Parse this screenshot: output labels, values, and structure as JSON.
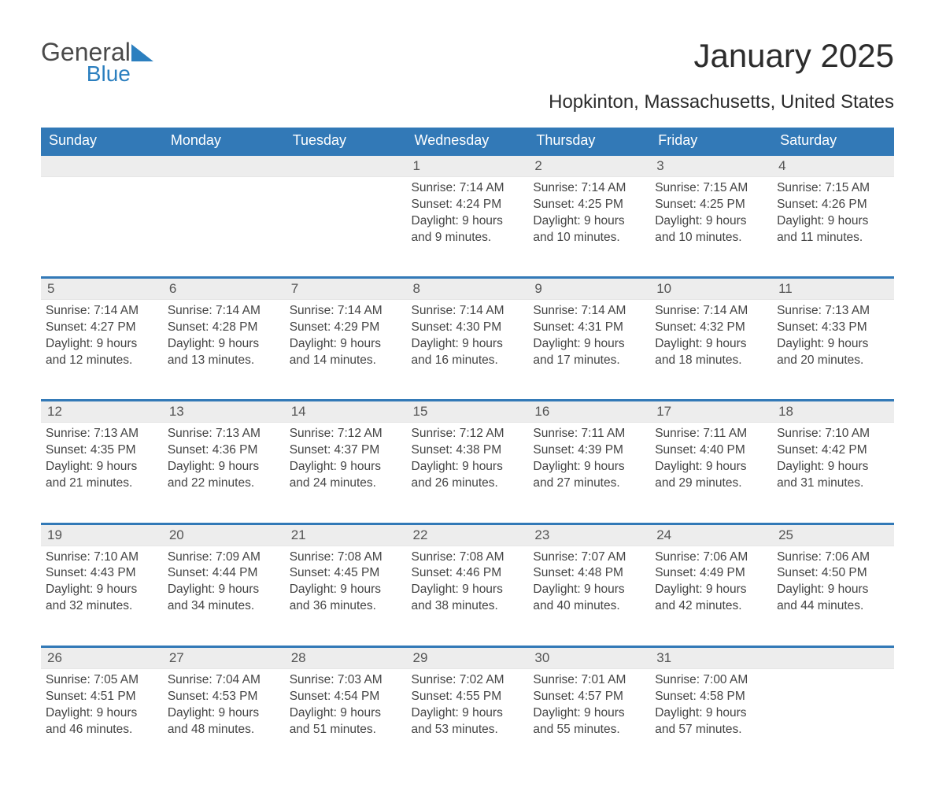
{
  "brand": {
    "general": "General",
    "blue": "Blue",
    "accent_color": "#2b7fbf"
  },
  "title": "January 2025",
  "location": "Hopkinton, Massachusetts, United States",
  "colors": {
    "header_bg": "#3279b7",
    "header_text": "#ffffff",
    "daynum_bg": "#ededed",
    "row_divider": "#3279b7",
    "body_text": "#444444",
    "background": "#ffffff"
  },
  "typography": {
    "title_fontsize": 42,
    "location_fontsize": 24,
    "header_fontsize": 18,
    "cell_fontsize": 15.5
  },
  "weekday_headers": [
    "Sunday",
    "Monday",
    "Tuesday",
    "Wednesday",
    "Thursday",
    "Friday",
    "Saturday"
  ],
  "labels": {
    "sunrise": "Sunrise:",
    "sunset": "Sunset:",
    "daylight": "Daylight:"
  },
  "weeks": [
    [
      {
        "empty": true
      },
      {
        "empty": true
      },
      {
        "empty": true
      },
      {
        "n": "1",
        "sunrise": "7:14 AM",
        "sunset": "4:24 PM",
        "daylight": "9 hours and 9 minutes."
      },
      {
        "n": "2",
        "sunrise": "7:14 AM",
        "sunset": "4:25 PM",
        "daylight": "9 hours and 10 minutes."
      },
      {
        "n": "3",
        "sunrise": "7:15 AM",
        "sunset": "4:25 PM",
        "daylight": "9 hours and 10 minutes."
      },
      {
        "n": "4",
        "sunrise": "7:15 AM",
        "sunset": "4:26 PM",
        "daylight": "9 hours and 11 minutes."
      }
    ],
    [
      {
        "n": "5",
        "sunrise": "7:14 AM",
        "sunset": "4:27 PM",
        "daylight": "9 hours and 12 minutes."
      },
      {
        "n": "6",
        "sunrise": "7:14 AM",
        "sunset": "4:28 PM",
        "daylight": "9 hours and 13 minutes."
      },
      {
        "n": "7",
        "sunrise": "7:14 AM",
        "sunset": "4:29 PM",
        "daylight": "9 hours and 14 minutes."
      },
      {
        "n": "8",
        "sunrise": "7:14 AM",
        "sunset": "4:30 PM",
        "daylight": "9 hours and 16 minutes."
      },
      {
        "n": "9",
        "sunrise": "7:14 AM",
        "sunset": "4:31 PM",
        "daylight": "9 hours and 17 minutes."
      },
      {
        "n": "10",
        "sunrise": "7:14 AM",
        "sunset": "4:32 PM",
        "daylight": "9 hours and 18 minutes."
      },
      {
        "n": "11",
        "sunrise": "7:13 AM",
        "sunset": "4:33 PM",
        "daylight": "9 hours and 20 minutes."
      }
    ],
    [
      {
        "n": "12",
        "sunrise": "7:13 AM",
        "sunset": "4:35 PM",
        "daylight": "9 hours and 21 minutes."
      },
      {
        "n": "13",
        "sunrise": "7:13 AM",
        "sunset": "4:36 PM",
        "daylight": "9 hours and 22 minutes."
      },
      {
        "n": "14",
        "sunrise": "7:12 AM",
        "sunset": "4:37 PM",
        "daylight": "9 hours and 24 minutes."
      },
      {
        "n": "15",
        "sunrise": "7:12 AM",
        "sunset": "4:38 PM",
        "daylight": "9 hours and 26 minutes."
      },
      {
        "n": "16",
        "sunrise": "7:11 AM",
        "sunset": "4:39 PM",
        "daylight": "9 hours and 27 minutes."
      },
      {
        "n": "17",
        "sunrise": "7:11 AM",
        "sunset": "4:40 PM",
        "daylight": "9 hours and 29 minutes."
      },
      {
        "n": "18",
        "sunrise": "7:10 AM",
        "sunset": "4:42 PM",
        "daylight": "9 hours and 31 minutes."
      }
    ],
    [
      {
        "n": "19",
        "sunrise": "7:10 AM",
        "sunset": "4:43 PM",
        "daylight": "9 hours and 32 minutes."
      },
      {
        "n": "20",
        "sunrise": "7:09 AM",
        "sunset": "4:44 PM",
        "daylight": "9 hours and 34 minutes."
      },
      {
        "n": "21",
        "sunrise": "7:08 AM",
        "sunset": "4:45 PM",
        "daylight": "9 hours and 36 minutes."
      },
      {
        "n": "22",
        "sunrise": "7:08 AM",
        "sunset": "4:46 PM",
        "daylight": "9 hours and 38 minutes."
      },
      {
        "n": "23",
        "sunrise": "7:07 AM",
        "sunset": "4:48 PM",
        "daylight": "9 hours and 40 minutes."
      },
      {
        "n": "24",
        "sunrise": "7:06 AM",
        "sunset": "4:49 PM",
        "daylight": "9 hours and 42 minutes."
      },
      {
        "n": "25",
        "sunrise": "7:06 AM",
        "sunset": "4:50 PM",
        "daylight": "9 hours and 44 minutes."
      }
    ],
    [
      {
        "n": "26",
        "sunrise": "7:05 AM",
        "sunset": "4:51 PM",
        "daylight": "9 hours and 46 minutes."
      },
      {
        "n": "27",
        "sunrise": "7:04 AM",
        "sunset": "4:53 PM",
        "daylight": "9 hours and 48 minutes."
      },
      {
        "n": "28",
        "sunrise": "7:03 AM",
        "sunset": "4:54 PM",
        "daylight": "9 hours and 51 minutes."
      },
      {
        "n": "29",
        "sunrise": "7:02 AM",
        "sunset": "4:55 PM",
        "daylight": "9 hours and 53 minutes."
      },
      {
        "n": "30",
        "sunrise": "7:01 AM",
        "sunset": "4:57 PM",
        "daylight": "9 hours and 55 minutes."
      },
      {
        "n": "31",
        "sunrise": "7:00 AM",
        "sunset": "4:58 PM",
        "daylight": "9 hours and 57 minutes."
      },
      {
        "empty": true
      }
    ]
  ]
}
